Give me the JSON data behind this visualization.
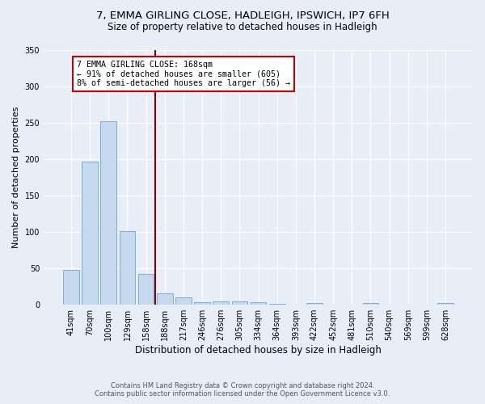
{
  "title_line1": "7, EMMA GIRLING CLOSE, HADLEIGH, IPSWICH, IP7 6FH",
  "title_line2": "Size of property relative to detached houses in Hadleigh",
  "xlabel": "Distribution of detached houses by size in Hadleigh",
  "ylabel": "Number of detached properties",
  "categories": [
    "41sqm",
    "70sqm",
    "100sqm",
    "129sqm",
    "158sqm",
    "188sqm",
    "217sqm",
    "246sqm",
    "276sqm",
    "305sqm",
    "334sqm",
    "364sqm",
    "393sqm",
    "422sqm",
    "452sqm",
    "481sqm",
    "510sqm",
    "540sqm",
    "569sqm",
    "599sqm",
    "628sqm"
  ],
  "values": [
    48,
    196,
    252,
    101,
    42,
    16,
    10,
    4,
    5,
    5,
    4,
    1,
    0,
    3,
    0,
    0,
    3,
    0,
    0,
    0,
    3
  ],
  "bar_color": "#c5d8ee",
  "bar_edge_color": "#7aafd4",
  "ylim": [
    0,
    350
  ],
  "yticks": [
    0,
    50,
    100,
    150,
    200,
    250,
    300,
    350
  ],
  "vline_color": "#8b0000",
  "annotation_text_line1": "7 EMMA GIRLING CLOSE: 168sqm",
  "annotation_text_line2": "← 91% of detached houses are smaller (605)",
  "annotation_text_line3": "8% of semi-detached houses are larger (56) →",
  "annotation_box_color": "#ffffff",
  "annotation_box_edge": "#cc0000",
  "footer_line1": "Contains HM Land Registry data © Crown copyright and database right 2024.",
  "footer_line2": "Contains public sector information licensed under the Open Government Licence v3.0.",
  "bg_color": "#e8eef8",
  "grid_color": "#ffffff",
  "title_fontsize": 9.5,
  "subtitle_fontsize": 8.5,
  "bar_width": 0.85
}
